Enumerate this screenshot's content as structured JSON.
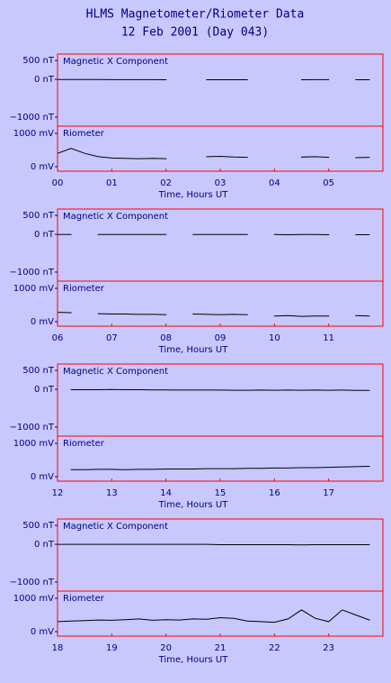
{
  "header": {
    "title": "HLMS Magnetometer/Riometer Data",
    "subtitle": "12 Feb 2001 (Day 043)"
  },
  "chart_data": [
    {
      "type": "line",
      "title": "Magnetic X Component",
      "color": "#000000",
      "x": [
        0,
        0.25,
        0.5,
        0.75,
        1,
        1.25,
        1.5,
        1.75,
        2,
        2.25,
        2.5,
        2.75,
        3,
        3.25,
        3.5,
        3.75,
        4,
        4.25,
        4.5,
        4.75,
        5,
        5.25,
        5.5,
        5.75
      ],
      "values": [
        -5,
        -5,
        -5,
        -5,
        -8,
        -8,
        -8,
        -8,
        -10,
        null,
        null,
        -10,
        -10,
        -10,
        -10,
        null,
        null,
        null,
        -10,
        -8,
        -8,
        null,
        -10,
        -10
      ],
      "xlim": [
        0,
        6
      ],
      "ylim": [
        -1240,
        670
      ],
      "yticks": [
        {
          "value": 500,
          "label": "500 nT"
        },
        {
          "value": 0,
          "label": "0 nT"
        },
        {
          "value": -1000,
          "label": "−1000 nT"
        }
      ]
    },
    {
      "type": "line",
      "title": "Riometer",
      "color": "#000000",
      "xlabel": "Time, Hours UT",
      "x": [
        0,
        0.25,
        0.5,
        0.75,
        1,
        1.25,
        1.5,
        1.75,
        2,
        2.25,
        2.5,
        2.75,
        3,
        3.25,
        3.5,
        3.75,
        4,
        4.25,
        4.5,
        4.75,
        5,
        5.25,
        5.5,
        5.75
      ],
      "values": [
        400,
        550,
        400,
        300,
        260,
        250,
        240,
        250,
        240,
        null,
        null,
        300,
        310,
        290,
        280,
        null,
        null,
        null,
        290,
        300,
        280,
        null,
        270,
        280
      ],
      "xlim": [
        0,
        6
      ],
      "ylim": [
        -135,
        1216
      ],
      "yticks": [
        {
          "value": 1000,
          "label": "1000 mV"
        },
        {
          "value": 0,
          "label": "0 mV"
        }
      ],
      "xticks": [
        {
          "value": 0,
          "label": "00"
        },
        {
          "value": 1,
          "label": "01"
        },
        {
          "value": 2,
          "label": "02"
        },
        {
          "value": 3,
          "label": "03"
        },
        {
          "value": 4,
          "label": "04"
        },
        {
          "value": 5,
          "label": "05"
        }
      ]
    },
    {
      "type": "line",
      "title": "Magnetic X Component",
      "color": "#000000",
      "x": [
        6,
        6.25,
        6.5,
        6.75,
        7,
        7.25,
        7.5,
        7.75,
        8,
        8.25,
        8.5,
        8.75,
        9,
        9.25,
        9.5,
        9.75,
        10,
        10.25,
        10.5,
        10.75,
        11,
        11.25,
        11.5,
        11.75
      ],
      "values": [
        -5,
        -5,
        null,
        -5,
        -5,
        -5,
        -5,
        -5,
        -5,
        null,
        -5,
        -5,
        -5,
        -5,
        -5,
        null,
        -5,
        -10,
        -5,
        -5,
        -10,
        null,
        -10,
        -10
      ],
      "xlim": [
        6,
        12
      ],
      "ylim": [
        -1240,
        670
      ],
      "yticks": [
        {
          "value": 500,
          "label": "500 nT"
        },
        {
          "value": 0,
          "label": "0 nT"
        },
        {
          "value": -1000,
          "label": "−1000 nT"
        }
      ]
    },
    {
      "type": "line",
      "title": "Riometer",
      "color": "#000000",
      "xlabel": "Time, Hours UT",
      "x": [
        6,
        6.25,
        6.5,
        6.75,
        7,
        7.25,
        7.5,
        7.75,
        8,
        8.25,
        8.5,
        8.75,
        9,
        9.25,
        9.5,
        9.75,
        10,
        10.25,
        10.5,
        10.75,
        11,
        11.25,
        11.5,
        11.75
      ],
      "values": [
        280,
        270,
        null,
        240,
        230,
        230,
        220,
        220,
        210,
        null,
        230,
        220,
        210,
        220,
        210,
        null,
        170,
        180,
        160,
        170,
        170,
        null,
        180,
        170
      ],
      "xlim": [
        6,
        12
      ],
      "ylim": [
        -135,
        1216
      ],
      "yticks": [
        {
          "value": 1000,
          "label": "1000 mV"
        },
        {
          "value": 0,
          "label": "0 mV"
        }
      ],
      "xticks": [
        {
          "value": 6,
          "label": "06"
        },
        {
          "value": 7,
          "label": "07"
        },
        {
          "value": 8,
          "label": "08"
        },
        {
          "value": 9,
          "label": "09"
        },
        {
          "value": 10,
          "label": "10"
        },
        {
          "value": 11,
          "label": "11"
        }
      ]
    },
    {
      "type": "line",
      "title": "Magnetic X Component",
      "color": "#000000",
      "x": [
        12,
        12.25,
        12.5,
        12.75,
        13,
        13.25,
        13.5,
        13.75,
        14,
        14.25,
        14.5,
        14.75,
        15,
        15.25,
        15.5,
        15.75,
        16,
        16.25,
        16.5,
        16.75,
        17,
        17.25,
        17.5,
        17.75
      ],
      "values": [
        null,
        -10,
        -10,
        -10,
        -5,
        -10,
        -10,
        -15,
        -15,
        -20,
        -20,
        -20,
        -20,
        -25,
        -25,
        -20,
        -25,
        -20,
        -25,
        -20,
        -25,
        -20,
        -30,
        -30
      ],
      "xlim": [
        12,
        18
      ],
      "ylim": [
        -1240,
        670
      ],
      "yticks": [
        {
          "value": 500,
          "label": "500 nT"
        },
        {
          "value": 0,
          "label": "0 nT"
        },
        {
          "value": -1000,
          "label": "−1000 nT"
        }
      ]
    },
    {
      "type": "line",
      "title": "Riometer",
      "color": "#000000",
      "xlabel": "Time, Hours UT",
      "x": [
        12,
        12.25,
        12.5,
        12.75,
        13,
        13.25,
        13.5,
        13.75,
        14,
        14.25,
        14.5,
        14.75,
        15,
        15.25,
        15.5,
        15.75,
        16,
        16.25,
        16.5,
        16.75,
        17,
        17.25,
        17.5,
        17.75
      ],
      "values": [
        null,
        210,
        210,
        220,
        220,
        210,
        220,
        220,
        230,
        230,
        230,
        240,
        240,
        240,
        250,
        250,
        260,
        260,
        270,
        270,
        280,
        290,
        300,
        310
      ],
      "xlim": [
        12,
        18
      ],
      "ylim": [
        -135,
        1216
      ],
      "yticks": [
        {
          "value": 1000,
          "label": "1000 mV"
        },
        {
          "value": 0,
          "label": "0 mV"
        }
      ],
      "xticks": [
        12,
        13,
        14,
        15,
        16,
        17
      ]
    },
    {
      "type": "line",
      "title": "Magnetic X Component",
      "color": "#000000",
      "x": [
        18,
        18.25,
        18.5,
        18.75,
        19,
        19.25,
        19.5,
        19.75,
        20,
        20.25,
        20.5,
        20.75,
        21,
        21.25,
        21.5,
        21.75,
        22,
        22.25,
        22.5,
        22.75,
        23,
        23.25,
        23.5,
        23.75
      ],
      "values": [
        0,
        0,
        0,
        0,
        0,
        0,
        0,
        0,
        0,
        0,
        0,
        0,
        -10,
        -10,
        -10,
        -10,
        -10,
        -10,
        -15,
        -10,
        -10,
        -10,
        -10,
        -10
      ],
      "xlim": [
        18,
        24
      ],
      "ylim": [
        -1240,
        670
      ],
      "yticks": [
        {
          "value": 500,
          "label": "500 nT"
        },
        {
          "value": 0,
          "label": "0 nT"
        },
        {
          "value": -1000,
          "label": "−1000 nT"
        }
      ]
    },
    {
      "type": "line",
      "title": "Riometer",
      "color": "#000000",
      "xlabel": "Time, Hours UT",
      "x": [
        18,
        18.25,
        18.5,
        18.75,
        19,
        19.25,
        19.5,
        19.75,
        20,
        20.25,
        20.5,
        20.75,
        21,
        21.25,
        21.5,
        21.75,
        22,
        22.25,
        22.5,
        22.75,
        23,
        23.25,
        23.5,
        23.75
      ],
      "values": [
        300,
        320,
        330,
        350,
        340,
        360,
        380,
        340,
        360,
        350,
        380,
        370,
        420,
        400,
        320,
        300,
        280,
        380,
        650,
        400,
        300,
        650,
        500,
        350
      ],
      "xlim": [
        18,
        24
      ],
      "ylim": [
        -135,
        1216
      ],
      "yticks": [
        {
          "value": 1000,
          "label": "1000 mV"
        },
        {
          "value": 0,
          "label": "0 mV"
        }
      ],
      "xticks": [
        18,
        19,
        20,
        21,
        22,
        23
      ]
    }
  ]
}
